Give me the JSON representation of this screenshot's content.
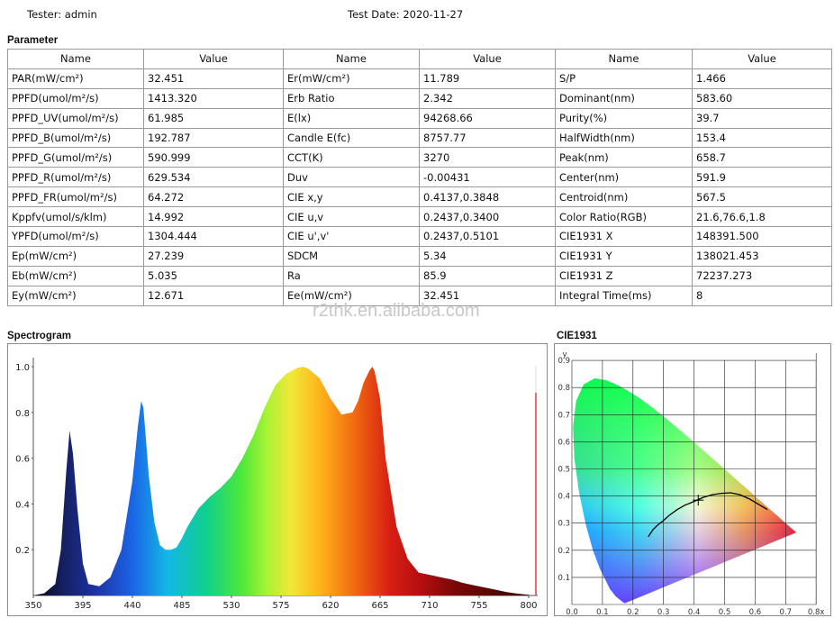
{
  "header": {
    "tester": "Tester: admin",
    "test_date": "Test Date: 2020-11-27"
  },
  "parameter": {
    "title": "Parameter",
    "headers": [
      "Name",
      "Value",
      "Name",
      "Value",
      "Name",
      "Value"
    ],
    "rows": [
      [
        "PAR(mW/cm²)",
        "32.451",
        "Er(mW/cm²)",
        "11.789",
        "S/P",
        "1.466"
      ],
      [
        "PPFD(umol/m²/s)",
        "1413.320",
        "Erb Ratio",
        "2.342",
        "Dominant(nm)",
        "583.60"
      ],
      [
        "PPFD_UV(umol/m²/s)",
        "61.985",
        "E(lx)",
        "94268.66",
        "Purity(%)",
        "39.7"
      ],
      [
        "PPFD_B(umol/m²/s)",
        "192.787",
        "Candle E(fc)",
        "8757.77",
        "HalfWidth(nm)",
        "153.4"
      ],
      [
        "PPFD_G(umol/m²/s)",
        "590.999",
        "CCT(K)",
        "3270",
        "Peak(nm)",
        "658.7"
      ],
      [
        "PPFD_R(umol/m²/s)",
        "629.534",
        "Duv",
        "-0.00431",
        "Center(nm)",
        "591.9"
      ],
      [
        "PPFD_FR(umol/m²/s)",
        "64.272",
        "CIE x,y",
        "0.4137,0.3848",
        "Centroid(nm)",
        "567.5"
      ],
      [
        "Kppfv(umol/s/klm)",
        "14.992",
        "CIE u,v",
        "0.2437,0.3400",
        "Color Ratio(RGB)",
        "21.6,76.6,1.8"
      ],
      [
        "YPFD(umol/m²/s)",
        "1304.444",
        "CIE u',v'",
        "0.2437,0.5101",
        "CIE1931 X",
        "148391.500"
      ],
      [
        "Ep(mW/cm²)",
        "27.239",
        "SDCM",
        "5.34",
        "CIE1931 Y",
        "138021.453"
      ],
      [
        "Eb(mW/cm²)",
        "5.035",
        "Ra",
        "85.9",
        "CIE1931 Z",
        "72237.273"
      ],
      [
        "Ey(mW/cm²)",
        "12.671",
        "Ee(mW/cm²)",
        "32.451",
        "Integral Time(ms)",
        "8"
      ]
    ]
  },
  "watermark": "r2thk.en.alibaba.com",
  "spectrogram": {
    "title": "Spectrogram",
    "chart_data": {
      "type": "area",
      "x": [
        350,
        360,
        370,
        375,
        380,
        383,
        386,
        390,
        395,
        400,
        410,
        420,
        430,
        440,
        445,
        448,
        450,
        452,
        455,
        460,
        465,
        470,
        475,
        480,
        485,
        490,
        500,
        510,
        520,
        530,
        540,
        550,
        560,
        570,
        580,
        590,
        595,
        600,
        610,
        620,
        630,
        640,
        645,
        650,
        655,
        658,
        660,
        665,
        670,
        680,
        690,
        700,
        710,
        720,
        730,
        740,
        750,
        760,
        770,
        780,
        790,
        800
      ],
      "y": [
        0.0,
        0.01,
        0.05,
        0.2,
        0.55,
        0.72,
        0.62,
        0.38,
        0.14,
        0.05,
        0.04,
        0.08,
        0.2,
        0.5,
        0.74,
        0.85,
        0.82,
        0.7,
        0.52,
        0.32,
        0.22,
        0.2,
        0.2,
        0.21,
        0.25,
        0.3,
        0.38,
        0.43,
        0.47,
        0.52,
        0.6,
        0.7,
        0.82,
        0.92,
        0.97,
        0.995,
        1.0,
        0.99,
        0.95,
        0.86,
        0.79,
        0.8,
        0.85,
        0.93,
        0.98,
        1.0,
        0.98,
        0.86,
        0.6,
        0.3,
        0.16,
        0.1,
        0.09,
        0.08,
        0.07,
        0.055,
        0.045,
        0.035,
        0.025,
        0.015,
        0.008,
        0.003
      ],
      "ylim": [
        0,
        1.0
      ],
      "x_ticks": [
        "350",
        "395",
        "440",
        "485",
        "530",
        "575",
        "620",
        "665",
        "710",
        "755",
        "800"
      ],
      "y_ticks": [
        "0.2",
        "0.4",
        "0.6",
        "0.8",
        "1.0"
      ]
    }
  },
  "cie": {
    "title": "CIE1931",
    "chart_data": {
      "type": "scatter",
      "x_ticks": [
        "0.0",
        "0.1",
        "0.2",
        "0.3",
        "0.4",
        "0.5",
        "0.6",
        "0.7",
        "0.8x"
      ],
      "y_ticks": [
        "0.1",
        "0.2",
        "0.3",
        "0.4",
        "0.5",
        "0.6",
        "0.7",
        "0.8",
        "0.9"
      ],
      "ylabel": "y",
      "point": [
        0.4137,
        0.3848
      ],
      "locus": [
        [
          0.1741,
          0.005
        ],
        [
          0.173,
          0.0048
        ],
        [
          0.1666,
          0.0089
        ],
        [
          0.144,
          0.0297
        ],
        [
          0.1241,
          0.0578
        ],
        [
          0.0913,
          0.1327
        ],
        [
          0.0687,
          0.2007
        ],
        [
          0.0454,
          0.295
        ],
        [
          0.0235,
          0.4127
        ],
        [
          0.0082,
          0.5384
        ],
        [
          0.0039,
          0.6548
        ],
        [
          0.0139,
          0.7502
        ],
        [
          0.0389,
          0.812
        ],
        [
          0.0743,
          0.8338
        ],
        [
          0.1142,
          0.8262
        ],
        [
          0.1547,
          0.8059
        ],
        [
          0.1929,
          0.7816
        ],
        [
          0.2296,
          0.7543
        ],
        [
          0.2658,
          0.7243
        ],
        [
          0.3016,
          0.6923
        ],
        [
          0.3373,
          0.6589
        ],
        [
          0.3731,
          0.6245
        ],
        [
          0.4087,
          0.5896
        ],
        [
          0.4441,
          0.5547
        ],
        [
          0.4788,
          0.5202
        ],
        [
          0.5125,
          0.4866
        ],
        [
          0.5448,
          0.4544
        ],
        [
          0.5752,
          0.4242
        ],
        [
          0.6029,
          0.3965
        ],
        [
          0.627,
          0.3725
        ],
        [
          0.6482,
          0.3514
        ],
        [
          0.6658,
          0.334
        ],
        [
          0.6801,
          0.3197
        ],
        [
          0.6915,
          0.3083
        ],
        [
          0.7006,
          0.2993
        ],
        [
          0.7347,
          0.2653
        ]
      ],
      "planckian": [
        [
          0.25,
          0.25
        ],
        [
          0.265,
          0.275
        ],
        [
          0.28,
          0.292
        ],
        [
          0.3,
          0.31
        ],
        [
          0.32,
          0.33
        ],
        [
          0.345,
          0.35
        ],
        [
          0.37,
          0.366
        ],
        [
          0.4,
          0.38
        ],
        [
          0.43,
          0.395
        ],
        [
          0.46,
          0.405
        ],
        [
          0.49,
          0.41
        ],
        [
          0.52,
          0.412
        ],
        [
          0.55,
          0.405
        ],
        [
          0.58,
          0.39
        ],
        [
          0.61,
          0.37
        ],
        [
          0.64,
          0.35
        ]
      ]
    }
  }
}
